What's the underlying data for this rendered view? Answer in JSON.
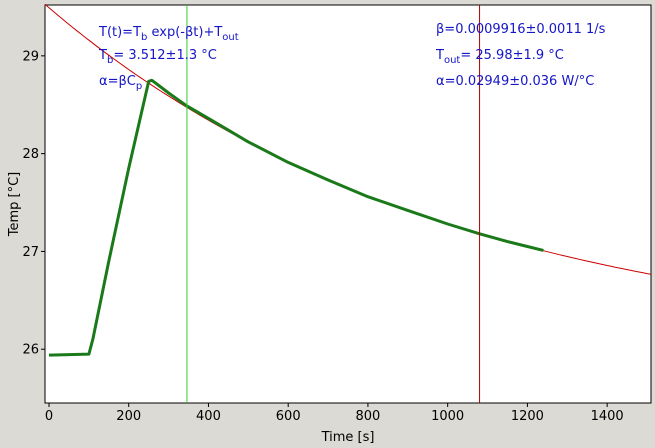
{
  "colors": {
    "background": "#dcdad5",
    "plot_bg": "#ffffff",
    "fit_line": "#cc0000",
    "data_series": "#1a7a1a",
    "marker_green": "#33cc33",
    "marker_red": "#aa0000",
    "annotation_text": "#1515c8"
  },
  "annotations": {
    "formula": {
      "a": "T(t)=T",
      "b": "b",
      "c": " exp(-βt)+T",
      "d": "out"
    },
    "tb": {
      "a": "T",
      "b": "b",
      "c": "= 3.512±1.3 °C"
    },
    "alpha_def": {
      "a": "α=βC",
      "b": "p"
    },
    "beta": "β=0.0009916±0.0011 1/s",
    "tout": {
      "a": "T",
      "b": "out",
      "c": "= 25.98±1.9 °C"
    },
    "alpha_val": "α=0.02949±0.036 W/°C"
  },
  "chart_data": {
    "type": "line",
    "xlabel": "Time [s]",
    "ylabel": "Temp [°C]",
    "xlim": [
      -10,
      1510
    ],
    "ylim": [
      25.45,
      29.52
    ],
    "xticks": [
      0,
      200,
      400,
      600,
      800,
      1000,
      1200,
      1400
    ],
    "yticks": [
      26,
      27,
      28,
      29
    ],
    "grid": false,
    "fit": {
      "Tb": 3.512,
      "beta": 0.0009916,
      "Tout": 25.98,
      "x_range": [
        -10,
        1510
      ]
    },
    "series": [
      {
        "x": [
          0,
          100,
          110,
          150,
          200,
          250,
          258,
          265,
          300,
          345,
          400,
          500,
          600,
          700,
          800,
          900,
          1000,
          1080,
          1150,
          1200,
          1240
        ],
        "y": [
          25.94,
          25.95,
          26.1,
          26.9,
          27.85,
          28.74,
          28.75,
          28.73,
          28.62,
          28.49,
          28.36,
          28.12,
          27.91,
          27.73,
          27.56,
          27.42,
          27.28,
          27.18,
          27.1,
          27.05,
          27.01
        ]
      }
    ],
    "vlines": [
      {
        "x": 346,
        "color": "green"
      },
      {
        "x": 1080,
        "color": "red"
      }
    ]
  }
}
